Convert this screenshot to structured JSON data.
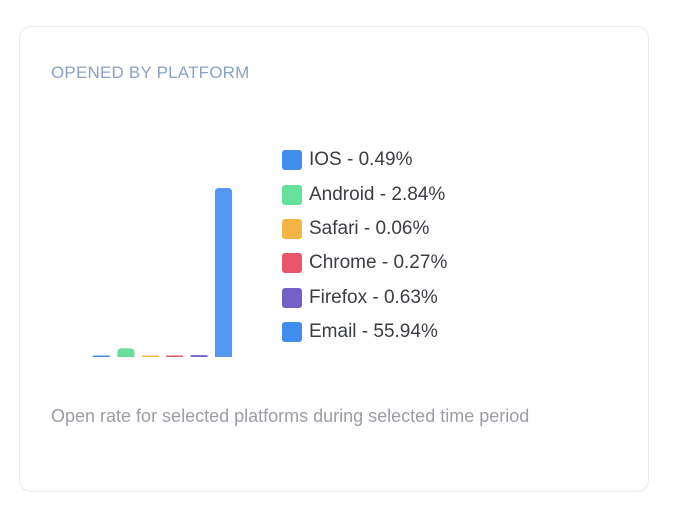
{
  "card": {
    "title": "OPENED BY PLATFORM",
    "footer": "Open rate for selected platforms during selected time period"
  },
  "chart_data": {
    "type": "bar",
    "categories": [
      "IOS",
      "Android",
      "Safari",
      "Chrome",
      "Firefox",
      "Email"
    ],
    "values": [
      0.49,
      2.84,
      0.06,
      0.27,
      0.63,
      55.94
    ],
    "colors": [
      "#3f8ef0",
      "#66e09b",
      "#f2b544",
      "#e9566a",
      "#7560c8",
      "#3f8ef0"
    ],
    "legend_labels": [
      "IOS - 0.49%",
      "Android - 2.84%",
      "Safari - 0.06%",
      "Chrome - 0.27%",
      "Firefox - 0.63%",
      "Email - 55.94%"
    ],
    "legend_position": "right",
    "grid": false,
    "ylim": [
      0,
      55.94
    ]
  }
}
